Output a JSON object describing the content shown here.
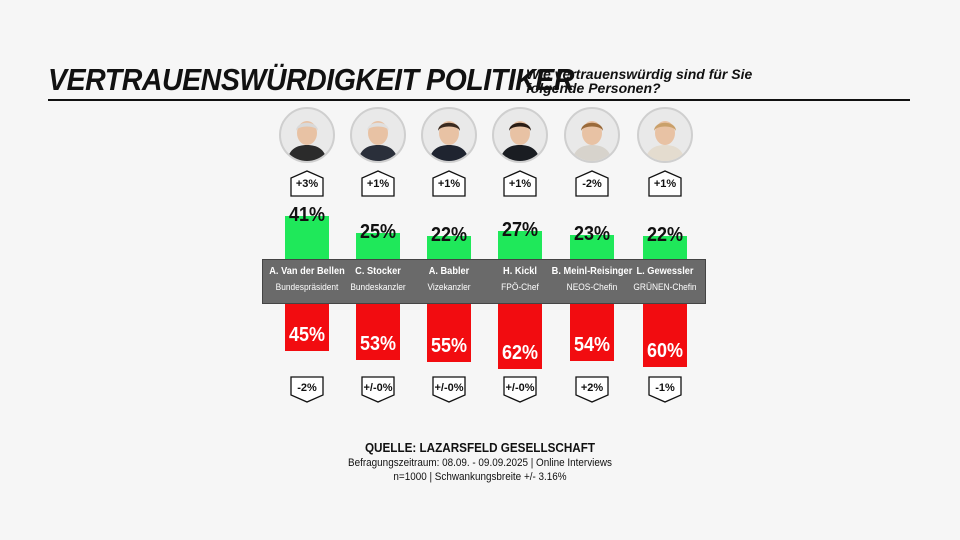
{
  "header": {
    "title": "VERTRAUENSWÜRDIGKEIT POLITIKER",
    "subtitle": "Wie vertrauenswürdig sind für Sie folgende Personen?"
  },
  "chart_data": {
    "type": "bar",
    "title": "VERTRAUENSWÜRDIGKEIT POLITIKER",
    "subtitle": "Wie vertrauenswürdig sind für Sie folgende Personen?",
    "categories": [
      "A. Van der Bellen",
      "C. Stocker",
      "A. Babler",
      "H. Kickl",
      "B. Meinl-Reisinger",
      "L. Gewessler"
    ],
    "roles": [
      "Bundespräsident",
      "Bundeskanzler",
      "Vizekanzler",
      "FPÖ-Chef",
      "NEOS-Chefin",
      "GRÜNEN-Chefin"
    ],
    "series": [
      {
        "values": [
          41,
          25,
          22,
          27,
          23,
          22
        ],
        "labels": [
          "41%",
          "25%",
          "22%",
          "27%",
          "23%",
          "22%"
        ],
        "changes": [
          "+3%",
          "+1%",
          "+1%",
          "+1%",
          "-2%",
          "+1%"
        ],
        "color": "#1fe85a"
      },
      {
        "values": [
          45,
          53,
          55,
          62,
          54,
          60
        ],
        "labels": [
          "45%",
          "53%",
          "55%",
          "62%",
          "54%",
          "60%"
        ],
        "changes": [
          "-2%",
          "+/-0%",
          "+/-0%",
          "+/-0%",
          "+2%",
          "-1%"
        ],
        "color": "#f20c10"
      }
    ]
  },
  "footer": {
    "source": "QUELLE: LAZARSFELD GESELLSCHAFT",
    "period": "Befragungszeitraum: 08.09. - 09.09.2025 | Online Interviews",
    "sample": "n=1000  |  Schwankungsbreite +/- 3.16%"
  }
}
